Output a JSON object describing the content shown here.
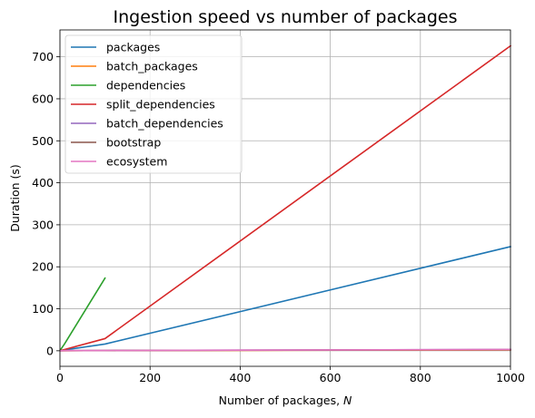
{
  "chart_data": {
    "type": "line",
    "title": "Ingestion speed vs number of packages",
    "xlabel": "Number of packages, ",
    "xlabel_var": "N",
    "ylabel": "Duration (s)",
    "xlim": [
      0,
      1000
    ],
    "ylim": [
      -37,
      764
    ],
    "x_ticks": [
      0,
      200,
      400,
      600,
      800,
      1000
    ],
    "y_ticks": [
      0,
      100,
      200,
      300,
      400,
      500,
      600,
      700
    ],
    "grid": true,
    "legend_position": "upper-left",
    "series": [
      {
        "name": "packages",
        "color": "#1f77b4",
        "x": [
          1,
          10,
          100,
          1000
        ],
        "y": [
          0.5,
          2,
          16,
          248
        ]
      },
      {
        "name": "batch_packages",
        "color": "#ff7f0e",
        "x": [
          1,
          10,
          100,
          1000
        ],
        "y": [
          0.1,
          0.2,
          0.5,
          2
        ]
      },
      {
        "name": "dependencies",
        "color": "#2ca02c",
        "x": [
          1,
          10,
          100
        ],
        "y": [
          2,
          16,
          173
        ]
      },
      {
        "name": "split_dependencies",
        "color": "#d62728",
        "x": [
          1,
          10,
          100,
          1000
        ],
        "y": [
          0.5,
          3,
          29,
          726
        ]
      },
      {
        "name": "batch_dependencies",
        "color": "#9467bd",
        "x": [
          1,
          10,
          100,
          1000
        ],
        "y": [
          0.1,
          0.3,
          0.8,
          3
        ]
      },
      {
        "name": "bootstrap",
        "color": "#8c564b",
        "x": [
          1,
          10,
          100,
          1000
        ],
        "y": [
          0.1,
          0.2,
          0.5,
          2.5
        ]
      },
      {
        "name": "ecosystem",
        "color": "#e377c2",
        "x": [
          1,
          10,
          100,
          1000
        ],
        "y": [
          0.1,
          0.3,
          0.7,
          3
        ]
      }
    ]
  }
}
